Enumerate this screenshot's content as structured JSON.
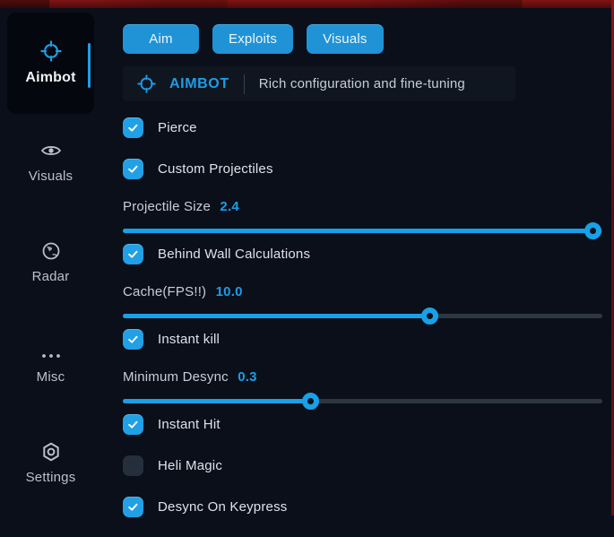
{
  "colors": {
    "background": "#0a0f19",
    "accent_blue": "#1d9de8",
    "tab_blue": "#1f93d6",
    "checkbox_blue": "#21a0e6",
    "slider_fill_blue": "#18a0e8",
    "slider_track_gray": "#2e3640",
    "top_edge_red": "#801313",
    "right_edge_red": "#6b1012",
    "panel_dark": "#10161f",
    "active_card_dark": "#04070d"
  },
  "sidebar": {
    "items": [
      {
        "label": "Aimbot",
        "icon": "crosshair",
        "active": true
      },
      {
        "label": "Visuals",
        "icon": "eye",
        "active": false
      },
      {
        "label": "Radar",
        "icon": "globe",
        "active": false
      },
      {
        "label": "Misc",
        "icon": "ellipsis",
        "active": false
      },
      {
        "label": "Settings",
        "icon": "gear",
        "active": false
      }
    ]
  },
  "tabs": [
    {
      "label": "Aim",
      "active": true
    },
    {
      "label": "Exploits",
      "active": false
    },
    {
      "label": "Visuals",
      "active": false
    }
  ],
  "header": {
    "icon": "crosshair",
    "title": "AIMBOT",
    "subtitle": "Rich configuration and fine-tuning"
  },
  "controls": [
    {
      "type": "checkbox",
      "label": "Pierce",
      "checked": true
    },
    {
      "type": "checkbox",
      "label": "Custom Projectiles",
      "checked": true
    },
    {
      "type": "slider",
      "label": "Projectile Size",
      "value": "2.4",
      "percent": 98
    },
    {
      "type": "checkbox",
      "label": "Behind Wall Calculations",
      "checked": true
    },
    {
      "type": "slider",
      "label": "Cache(FPS!!)",
      "value": "10.0",
      "percent": 64
    },
    {
      "type": "checkbox",
      "label": "Instant kill",
      "checked": true
    },
    {
      "type": "slider",
      "label": "Minimum Desync",
      "value": "0.3",
      "percent": 39
    },
    {
      "type": "checkbox",
      "label": "Instant Hit",
      "checked": true
    },
    {
      "type": "checkbox",
      "label": "Heli Magic",
      "checked": false
    },
    {
      "type": "checkbox",
      "label": "Desync On Keypress",
      "checked": true
    }
  ]
}
